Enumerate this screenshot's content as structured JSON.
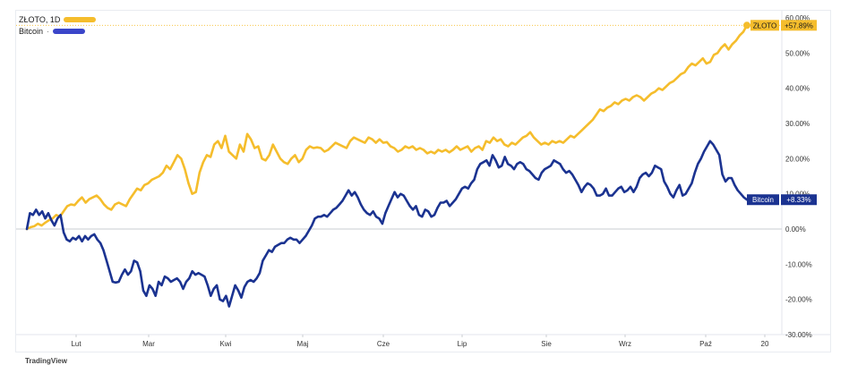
{
  "legend": [
    {
      "label": "ZŁOTO, 1D",
      "color": "#f5bd2c"
    },
    {
      "label": "Bitcoin",
      "dot": "·",
      "color": "#3a45c9"
    }
  ],
  "watermark": "TradingView",
  "chart_data": {
    "type": "line",
    "x_ticks": [
      "Lut",
      "Mar",
      "Kwi",
      "Maj",
      "Cze",
      "Lip",
      "Sie",
      "Wrz",
      "Paź",
      "20"
    ],
    "y_ticks": [
      "60.00%",
      "50.00%",
      "40.00%",
      "30.00%",
      "20.00%",
      "10.00%",
      "0.00%",
      "-10.00%",
      "-20.00%",
      "-30.00%"
    ],
    "ylim": [
      -30,
      60
    ],
    "y_unit": "%",
    "grid": false,
    "legend_position": "top-left",
    "series": [
      {
        "name": "ZŁOTO",
        "color": "#f5bd2c",
        "last_label": "ZŁOTO",
        "last_value_label": "+57.89%",
        "values": [
          0,
          0.5,
          0.8,
          1.5,
          1,
          1.8,
          2.5,
          3,
          4,
          3.5,
          5,
          6.5,
          7,
          6.8,
          8,
          9,
          7.5,
          8.5,
          9,
          9.5,
          8.5,
          7,
          6,
          5.5,
          7,
          7.5,
          7,
          6.5,
          8.5,
          10,
          11.5,
          11,
          12.5,
          13,
          14,
          14.5,
          15,
          16,
          18,
          17,
          19,
          21,
          20,
          17,
          13,
          10,
          10.5,
          16,
          19,
          21,
          20.5,
          24,
          25,
          23,
          26.5,
          22,
          21,
          20,
          24,
          22,
          27,
          25.5,
          23,
          23.5,
          20,
          19.5,
          21,
          24,
          22,
          20,
          19,
          18.5,
          20,
          21,
          19,
          20,
          22.5,
          23.5,
          23,
          23.2,
          23,
          22,
          22.5,
          23.5,
          24.5,
          24,
          23.5,
          23,
          25,
          26,
          25.5,
          25,
          24.5,
          26,
          25.5,
          24.5,
          25.5,
          24.5,
          24.7,
          23.5,
          23,
          22,
          22.5,
          23.5,
          23,
          23.5,
          22.5,
          23,
          22.5,
          21.5,
          22,
          21.5,
          22.5,
          22,
          22.5,
          21.8,
          22.5,
          23.5,
          22.5,
          23,
          23.5,
          22,
          23,
          23.5,
          22.5,
          25,
          24.5,
          26,
          25,
          25.5,
          24,
          23.5,
          24.5,
          24,
          25,
          26,
          26.5,
          27.5,
          26,
          25,
          24,
          24.5,
          24,
          25,
          24.5,
          25,
          24.5,
          25.5,
          26.5,
          26,
          27,
          28,
          29,
          30,
          31,
          32.5,
          34,
          33.5,
          34.5,
          35,
          36,
          35.5,
          36.5,
          37,
          36.5,
          37.5,
          38,
          37.5,
          36.5,
          37.5,
          38.5,
          39,
          40,
          39.5,
          40.5,
          41.5,
          42,
          43,
          44,
          44.5,
          46,
          47,
          46.5,
          47.5,
          48.5,
          47,
          47.5,
          49.5,
          50,
          51.5,
          52.5,
          51,
          52.5,
          53.5,
          55,
          56,
          57.89
        ]
      },
      {
        "name": "Bitcoin",
        "color": "#1b3391",
        "last_label": "Bitcoin",
        "last_value_label": "+8.33%",
        "values": [
          0,
          4.5,
          4,
          5.5,
          4,
          5,
          3,
          4.5,
          2.5,
          1,
          3,
          4,
          -1,
          -3,
          -3.5,
          -2.5,
          -3,
          -2,
          -3.5,
          -2,
          -3,
          -2,
          -1.5,
          -3,
          -4,
          -6,
          -9,
          -12,
          -15,
          -15.2,
          -15,
          -13,
          -11.5,
          -13,
          -12,
          -9,
          -9.5,
          -12,
          -17.5,
          -19,
          -16,
          -17,
          -19,
          -15,
          -16,
          -13.5,
          -14,
          -15,
          -14.5,
          -14,
          -15,
          -17,
          -15,
          -14,
          -12,
          -13,
          -12.5,
          -13,
          -13.5,
          -16,
          -19,
          -17,
          -16,
          -20,
          -20.5,
          -19,
          -22,
          -19,
          -16,
          -17.5,
          -19.5,
          -16.5,
          -15,
          -14.5,
          -15,
          -14,
          -12.5,
          -9,
          -7.5,
          -6,
          -6.5,
          -5,
          -4.5,
          -4,
          -4,
          -3,
          -2.5,
          -3,
          -3,
          -4,
          -3,
          -2,
          -0.5,
          1,
          3,
          3.5,
          3.5,
          4,
          3.5,
          4.5,
          5.5,
          6,
          7,
          8,
          9.5,
          11,
          9.5,
          10.5,
          9,
          7,
          5.5,
          4.5,
          4,
          5,
          3.5,
          3,
          1.5,
          4.5,
          6.5,
          8.5,
          10.5,
          9,
          10,
          9.5,
          8,
          6.5,
          5.5,
          6.5,
          4,
          3.5,
          5.5,
          5,
          3.5,
          4,
          6,
          7.5,
          7.5,
          8,
          6.5,
          7.5,
          8.5,
          10,
          11.5,
          12,
          11.5,
          13,
          14,
          17,
          18.5,
          19,
          19.5,
          18,
          21,
          19.5,
          17.5,
          18,
          20.5,
          18.5,
          18,
          17,
          18.5,
          19,
          18.5,
          17,
          16.5,
          15.5,
          14.5,
          14,
          16,
          17,
          17.5,
          18,
          19.5,
          19,
          18.5,
          17,
          16,
          16.5,
          15.5,
          14,
          12.5,
          10.5,
          12,
          13,
          12.5,
          11.5,
          9.5,
          9.5,
          10,
          11.5,
          9.5,
          9.5,
          10.5,
          11.5,
          12,
          10.5,
          11,
          12,
          10.5,
          12,
          14.5,
          15.5,
          16,
          15,
          16,
          18,
          17.5,
          17,
          13.5,
          12,
          10,
          9,
          11,
          12.5,
          9.5,
          10,
          11.5,
          13,
          16,
          18.5,
          20,
          22,
          23.5,
          25,
          24,
          22.5,
          21,
          15.5,
          13.5,
          14.5,
          14.5,
          12.5,
          11,
          10,
          9,
          8.33
        ]
      }
    ]
  }
}
